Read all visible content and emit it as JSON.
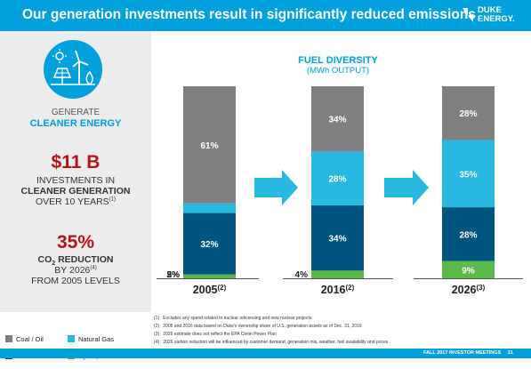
{
  "header": {
    "title": "Our generation investments result in significantly reduced emissions"
  },
  "logo": {
    "line1": "DUKE",
    "line2": "ENERGY."
  },
  "left_panel": {
    "icon": "solar-wind-icon",
    "generate": "GENERATE",
    "cleaner_energy": "CLEANER ENERGY",
    "investment": "$11 B",
    "invest_line1": "INVESTMENTS IN",
    "invest_line2": "CLEANER GENERATION",
    "invest_line3": "OVER 10 YEARS",
    "invest_note": "(1)",
    "reduction": "35%",
    "co2_pre": "CO",
    "co2_sub": "2",
    "co2_post": " REDUCTION",
    "by_year": "BY 2026",
    "by_note": "(4)",
    "from_levels": "FROM 2005 LEVELS"
  },
  "legend": [
    {
      "label": "Coal / Oil",
      "color": "#808080"
    },
    {
      "label": "Natural Gas",
      "color": "#29b8e0"
    },
    {
      "label": "Nuclear",
      "color": "#00557f"
    },
    {
      "label": "Hydro, Wind & Solar",
      "color": "#5cb848"
    }
  ],
  "colors": {
    "coal": "#808080",
    "gas": "#29b8e0",
    "nuclear": "#00557f",
    "renewables": "#5cb848",
    "arrow": "#29b8e0",
    "brand": "#00a0dc",
    "accent_red": "#b5121b"
  },
  "chart_data": {
    "type": "bar",
    "stacked": true,
    "title": "FUEL DIVERSITY",
    "subtitle": "(MWh OUTPUT)",
    "categories": [
      "2005",
      "2016",
      "2026"
    ],
    "category_notes": [
      "(2)",
      "(2)",
      "(3)"
    ],
    "series": [
      {
        "name": "Hydro, Wind & Solar",
        "values": [
          2,
          4,
          9
        ]
      },
      {
        "name": "Nuclear",
        "values": [
          32,
          34,
          28
        ]
      },
      {
        "name": "Natural Gas",
        "values": [
          5,
          28,
          35
        ]
      },
      {
        "name": "Coal / Oil",
        "values": [
          61,
          34,
          28
        ]
      }
    ],
    "ylim": [
      0,
      100
    ]
  },
  "footnotes": [
    {
      "num": "(1)",
      "text": "Excludes any spend related to nuclear relicensing and new nuclear projects"
    },
    {
      "num": "(2)",
      "text": "2005 and 2016 data based on Duke's ownership share of U.S. generation assets as of Dec. 31, 2016"
    },
    {
      "num": "(3)",
      "text": "2026 estimate does not reflect the EPA Clean Power Plan"
    },
    {
      "num": "(4)",
      "text": "2026 carbon reduction will be influenced by customer demand, generation mix, weather, fuel availability and prices"
    }
  ],
  "footer": {
    "text": "FALL 2017 INVESTOR MEETINGS",
    "page": "21"
  }
}
